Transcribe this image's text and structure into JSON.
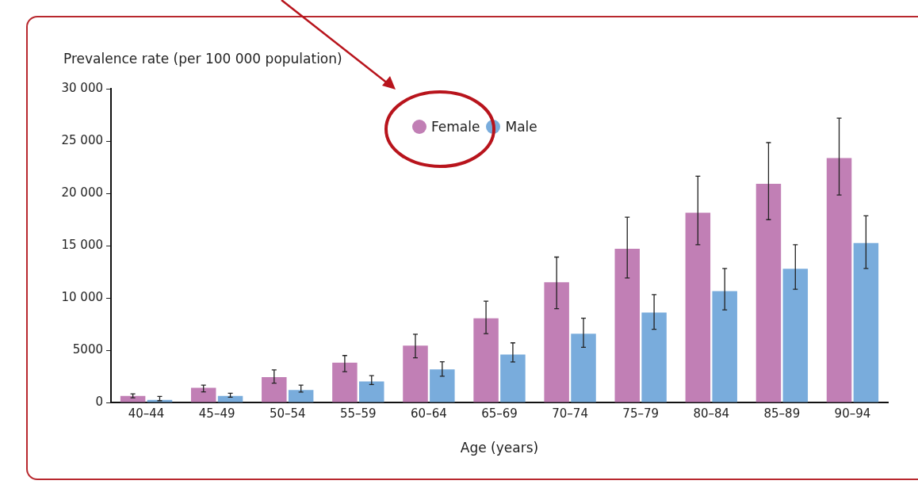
{
  "chart_data": {
    "type": "bar",
    "ylabel": "Prevalence rate (per 100 000 population)",
    "xlabel": "Age (years)",
    "categories": [
      "40–44",
      "45–49",
      "50–54",
      "55–59",
      "60–64",
      "65–69",
      "70–74",
      "75–79",
      "80–84",
      "85–89",
      "90–94"
    ],
    "series": [
      {
        "name": "Female",
        "color": "#c17fb5",
        "values": [
          630,
          1400,
          2430,
          3800,
          5430,
          8040,
          11490,
          14690,
          18140,
          20900,
          23370
        ],
        "errors": [
          [
            440,
            830
          ],
          [
            1020,
            1650
          ],
          [
            1850,
            3120
          ],
          [
            2950,
            4490
          ],
          [
            4270,
            6530
          ],
          [
            6580,
            9680
          ],
          [
            8970,
            13900
          ],
          [
            11910,
            17720
          ],
          [
            15090,
            21640
          ],
          [
            17480,
            24850
          ],
          [
            19840,
            27190
          ]
        ]
      },
      {
        "name": "Male",
        "color": "#79acdc",
        "values": [
          250,
          630,
          1190,
          2010,
          3170,
          4590,
          6580,
          8590,
          10640,
          12790,
          15250
        ],
        "errors": [
          [
            170,
            580
          ],
          [
            500,
            880
          ],
          [
            990,
            1650
          ],
          [
            1710,
            2560
          ],
          [
            2510,
            3890
          ],
          [
            3870,
            5700
          ],
          [
            5280,
            8060
          ],
          [
            7000,
            10320
          ],
          [
            8860,
            12810
          ],
          [
            10820,
            15090
          ],
          [
            12810,
            17850
          ]
        ]
      }
    ],
    "ylim": [
      0,
      30000
    ],
    "yticks": [
      0,
      5000,
      {
        "value": 10000,
        "label": "10 000"
      },
      {
        "value": 15000,
        "label": "15 000"
      },
      {
        "value": 20000,
        "label": "20 000"
      },
      {
        "value": 25000,
        "label": "25 000"
      },
      {
        "value": 30000,
        "label": "30 000"
      }
    ],
    "grid": false,
    "legend": "top",
    "marker": "circle"
  }
}
